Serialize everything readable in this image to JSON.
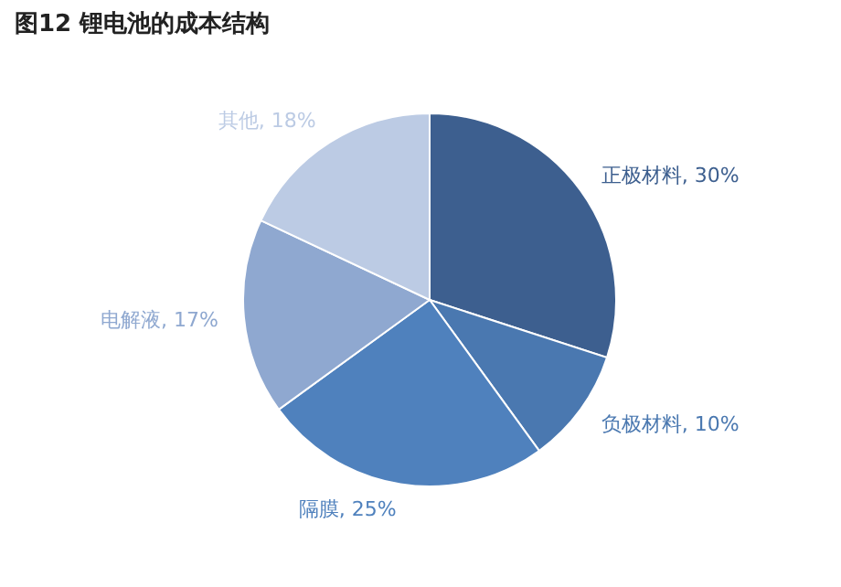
{
  "chart_data": {
    "type": "pie",
    "title": "图12 锂电池的成本结构",
    "categories": [
      "正极材料",
      "负极材料",
      "隔膜",
      "电解液",
      "其他"
    ],
    "values": [
      30,
      10,
      25,
      17,
      18
    ],
    "value_labels": [
      "30%",
      "10%",
      "25%",
      "17%",
      "18%"
    ],
    "colors": [
      "#3d5f8f",
      "#4a78b0",
      "#4f81bd",
      "#8fa8d0",
      "#bccbe4"
    ],
    "legend": false
  }
}
